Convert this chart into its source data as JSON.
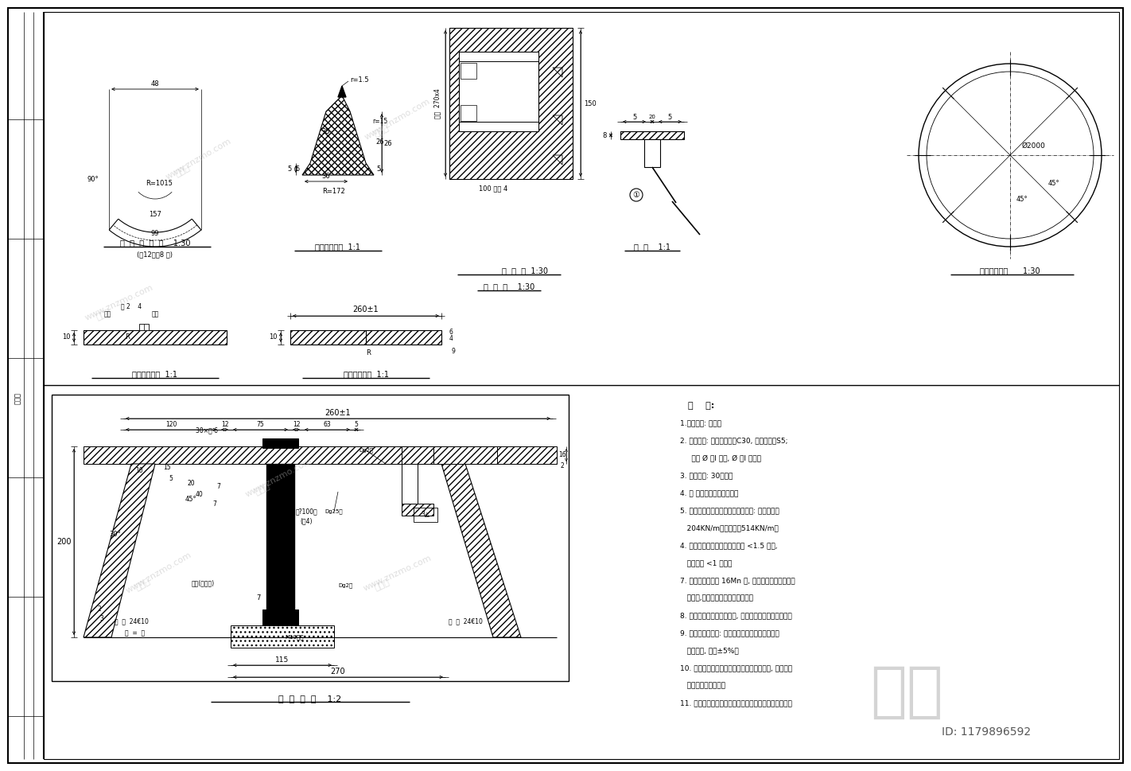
{
  "bg_color": "#ffffff",
  "line_color": "#000000",
  "notes": [
    "说  明:",
    "1.尺寸单位: 毫米。",
    "2. 管板材料: 混凝土等级为C30, 钢筋等级为S5;",
    "     钢筋 Ø 为I 级钢, Ø 为I 级钢。",
    "3. 垫板厚度: 30毫米。",
    "4. 凡 外环箍主螺旋式布置。",
    "5. 盖板管出厂前应按最大受弯矩进行: 梁跨指具为",
    "   204KN/m梁跨指具为514KN/m。",
    "4. 管节端面与管轴中轴不垂直度 <1.5 毫米,",
    "   管面不度 <1 毫米。",
    "7. 钢箍环及钢环为 16Mn 钢, 钢箍环表面刷防锈漆。",
    "   内外面,副要求遵循施工规范规程。",
    "8. 橡胶圈胶接采用氯丁橡胶, 材质要求遵循规范和说明。",
    "9. 橡胶圈胶接合缝: 其应力一般对某系的胶接合缝",
    "   角度累计, 误差±5%。",
    "10. 管材数量在安装多层胶合余料时同步装载, 使端应压",
    "   紧后与管肉端并齐。",
    "11. 注意凡细眉豆及位置可结合参建施工方案要求调整。"
  ]
}
